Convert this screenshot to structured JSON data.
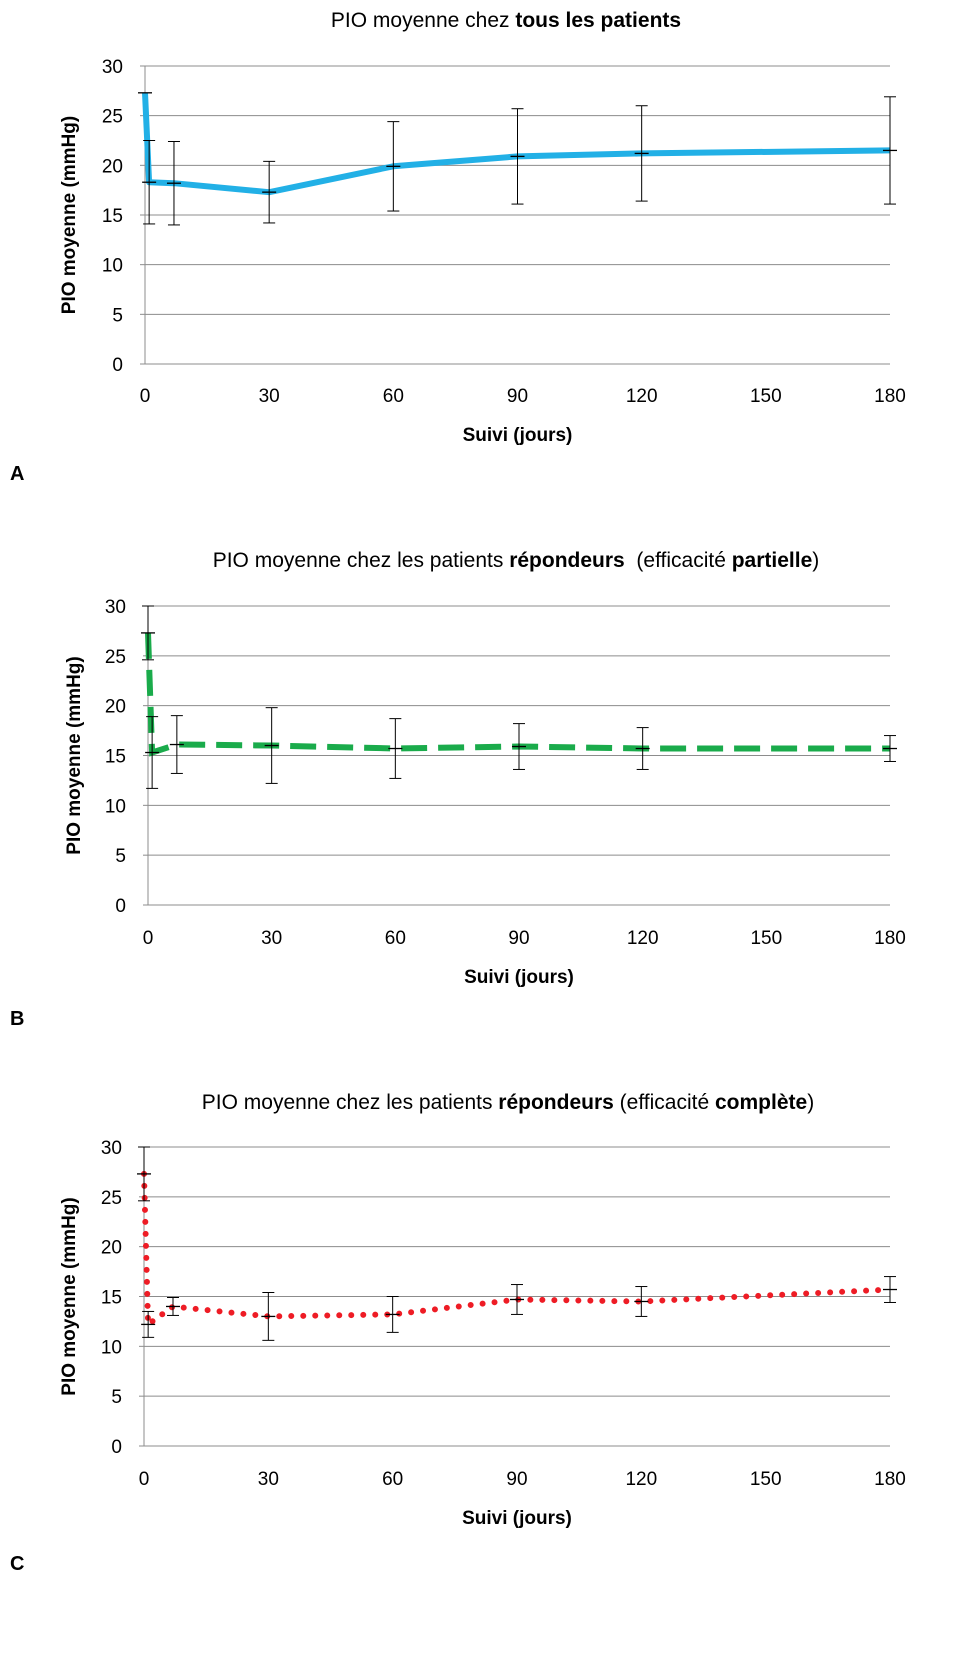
{
  "chart_data": [
    {
      "type": "line",
      "panel_label": "A",
      "title": {
        "runs": [
          {
            "text": "PIO moyenne chez ",
            "bold": false
          },
          {
            "text": "tous les patients",
            "bold": true
          }
        ]
      },
      "xlabel": "Suivi (jours)",
      "ylabel": "PIO moyenne (mmHg)",
      "xlim": [
        0,
        180
      ],
      "ylim": [
        0,
        30
      ],
      "xticks": [
        0,
        30,
        60,
        90,
        120,
        150,
        180
      ],
      "yticks": [
        0,
        5,
        10,
        15,
        20,
        25,
        30
      ],
      "grid": "horizontal",
      "series": [
        {
          "color": "#22b0e6",
          "line_style": "solid",
          "x": [
            0,
            1,
            7,
            30,
            60,
            90,
            120,
            180
          ],
          "y": [
            27.3,
            18.3,
            18.2,
            17.3,
            19.9,
            20.9,
            21.2,
            21.5
          ],
          "error": [
            null,
            4.2,
            4.2,
            3.1,
            4.5,
            4.8,
            4.8,
            5.4
          ]
        }
      ]
    },
    {
      "type": "line",
      "panel_label": "B",
      "title": {
        "runs": [
          {
            "text": "PIO moyenne chez les patients ",
            "bold": false
          },
          {
            "text": "répondeurs",
            "bold": true
          },
          {
            "text": "  (efficacité ",
            "bold": false
          },
          {
            "text": "partielle",
            "bold": true
          },
          {
            "text": ")",
            "bold": false
          }
        ]
      },
      "xlabel": "Suivi (jours)",
      "ylabel": "PIO moyenne (mmHg)",
      "xlim": [
        0,
        180
      ],
      "ylim": [
        0,
        30
      ],
      "xticks": [
        0,
        30,
        60,
        90,
        120,
        150,
        180
      ],
      "yticks": [
        0,
        5,
        10,
        15,
        20,
        25,
        30
      ],
      "grid": "horizontal",
      "series": [
        {
          "color": "#1aab4b",
          "line_style": "dashed",
          "x": [
            0,
            1,
            7,
            30,
            60,
            90,
            120,
            180
          ],
          "y": [
            27.3,
            15.3,
            16.1,
            16.0,
            15.7,
            15.9,
            15.7,
            15.7
          ],
          "error": [
            2.7,
            3.6,
            2.9,
            3.8,
            3.0,
            2.3,
            2.1,
            1.3
          ]
        }
      ]
    },
    {
      "type": "line",
      "panel_label": "C",
      "title": {
        "runs": [
          {
            "text": "PIO moyenne chez les patients ",
            "bold": false
          },
          {
            "text": "répondeurs",
            "bold": true
          },
          {
            "text": " (efficacité ",
            "bold": false
          },
          {
            "text": "complète",
            "bold": true
          },
          {
            "text": ")",
            "bold": false
          }
        ]
      },
      "xlabel": "Suivi (jours)",
      "ylabel": "PIO moyenne (mmHg)",
      "xlim": [
        0,
        180
      ],
      "ylim": [
        0,
        30
      ],
      "xticks": [
        0,
        30,
        60,
        90,
        120,
        150,
        180
      ],
      "yticks": [
        0,
        5,
        10,
        15,
        20,
        25,
        30
      ],
      "grid": "horizontal",
      "series": [
        {
          "color": "#ee1c25",
          "line_style": "dotted",
          "x": [
            0,
            1,
            7,
            30,
            60,
            90,
            120,
            180
          ],
          "y": [
            27.3,
            12.2,
            14.0,
            13.0,
            13.2,
            14.7,
            14.5,
            15.7
          ],
          "error": [
            2.7,
            1.3,
            0.9,
            2.4,
            1.8,
            1.5,
            1.5,
            1.3
          ]
        }
      ]
    }
  ]
}
